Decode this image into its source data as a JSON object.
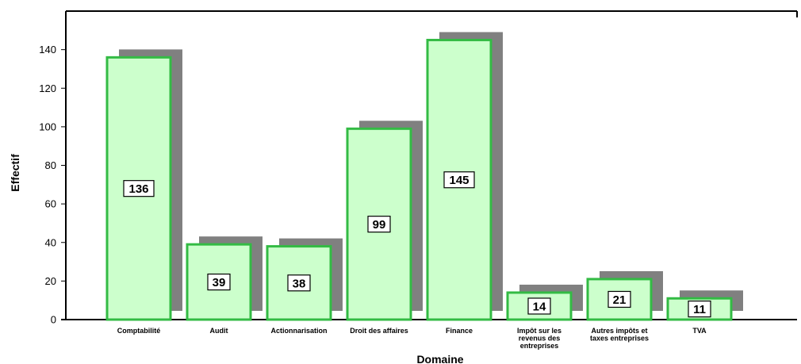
{
  "chart_data": {
    "type": "bar",
    "categories": [
      [
        "Comptabilité"
      ],
      [
        "Audit"
      ],
      [
        "Actionnarisation"
      ],
      [
        "Droit des affaires"
      ],
      [
        "Finance"
      ],
      [
        "Impôt sur les",
        "revenus des",
        "entreprises"
      ],
      [
        "Autres impôts et",
        "taxes entreprises"
      ],
      [
        "TVA"
      ]
    ],
    "values": [
      136,
      39,
      38,
      99,
      145,
      14,
      21,
      11
    ],
    "title": "",
    "xlabel": "Domaine",
    "ylabel": "Effectif",
    "ylim": [
      0,
      160
    ],
    "yticks": [
      0,
      20,
      40,
      60,
      80,
      100,
      120,
      140
    ],
    "grid": false,
    "legend": "none",
    "colors": {
      "bar_fill": "#ccffcc",
      "bar_stroke": "#33bb44",
      "shadow": "#808080",
      "axis": "#000000"
    }
  }
}
